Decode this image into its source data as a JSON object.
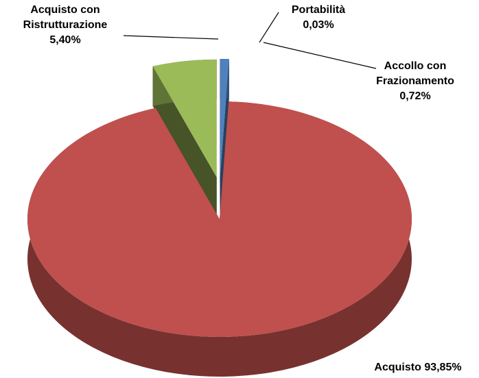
{
  "chart_data": {
    "type": "pie",
    "categories": [
      "Portabilità",
      "Accollo con Frazionamento",
      "Acquisto",
      "Acquisto con Ristrutturazione"
    ],
    "values": [
      0.03,
      0.72,
      93.85,
      5.4
    ],
    "value_labels": [
      "0,03%",
      "0,72%",
      "93,85%",
      "5,40%"
    ],
    "colors": [
      "#8064a2",
      "#4f81bd",
      "#c0504d",
      "#9bbb59"
    ]
  }
}
